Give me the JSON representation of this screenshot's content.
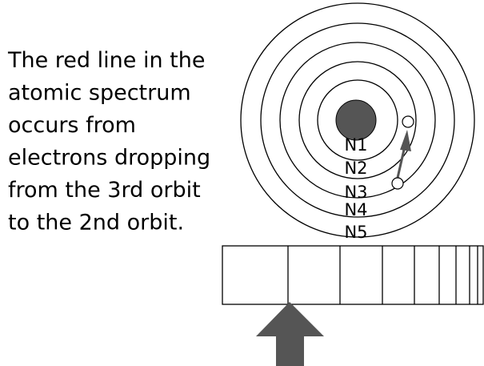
{
  "text": {
    "lines": [
      "The red line in the",
      "atomic spectrum",
      "occurs from",
      "electrons dropping",
      "from the 3rd orbit",
      "to the 2nd orbit."
    ]
  },
  "levels": [
    "N1",
    "N2",
    "N3",
    "N4",
    "N5"
  ]
}
